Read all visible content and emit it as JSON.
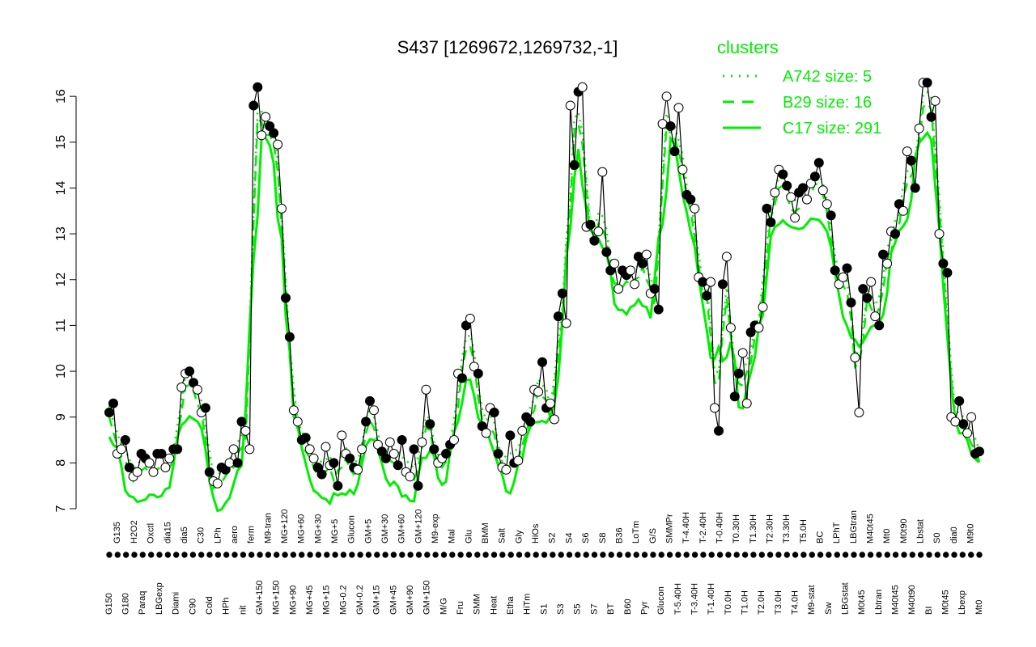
{
  "chart_data": {
    "type": "line",
    "title": "S437 [1269672,1269732,-1]",
    "xlabel": "",
    "ylabel": "",
    "ylim": [
      7,
      16.5
    ],
    "yticks": [
      7,
      8,
      9,
      10,
      11,
      12,
      13,
      14,
      15,
      16
    ],
    "grid": false,
    "legend": {
      "placement": "top-right",
      "title": "clusters",
      "entries": [
        {
          "label": "A742 size: 5",
          "style": "dotted",
          "color": "#00ee00"
        },
        {
          "label": "B29 size: 16",
          "style": "dashed",
          "color": "#00ee00"
        },
        {
          "label": "C17 size: 291",
          "style": "solid",
          "color": "#00ee00"
        }
      ]
    },
    "x_labels": [
      "G150",
      "G135",
      "G180",
      "H2O2",
      "Paraq",
      "Oxctl",
      "LBGexp",
      "dia15",
      "Diami",
      "dia5",
      "C90",
      "C30",
      "Cold",
      "LPh",
      "HPh",
      "aero",
      "nit",
      "ferm",
      "GM+150",
      "M9-tran",
      "MG+150",
      "MG+120",
      "MG+90",
      "MG+60",
      "MG+45",
      "MG+30",
      "MG+15",
      "MG+5",
      "MG-0.2",
      "Glucon",
      "GM-0.2",
      "GM+5",
      "GM+15",
      "GM+30",
      "GM+45",
      "GM+60",
      "GM+90",
      "GM+120",
      "GM+150",
      "M9-exp",
      "M/G",
      "Mal",
      "Fru",
      "Glu",
      "SMM",
      "BMM",
      "Heat",
      "Salt",
      "Etha",
      "Gly",
      "HiTm",
      "HiOs",
      "S1",
      "S2",
      "S3",
      "S4",
      "S5",
      "S6",
      "S7",
      "S8",
      "BT",
      "B36",
      "B60",
      "LoTm",
      "Pyr",
      "G/S",
      "Glucon",
      "SMMPr",
      "T-5.40H",
      "T-4.40H",
      "T-3.40H",
      "T-2.40H",
      "T-1.40H",
      "T-0.40H",
      "T0.0H",
      "T0.30H",
      "T1.0H",
      "T1.30H",
      "T2.0H",
      "T2.30H",
      "T3.0H",
      "T3.30H",
      "T4.0H",
      "T5.0H",
      "M9-stat",
      "BC",
      "Sw",
      "LPhT",
      "LBGstat",
      "LBGtran",
      "M0t45",
      "M40t45",
      "Lbtran",
      "Mt0",
      "M40t45",
      "M0t90",
      "M40t90",
      "Lbstat",
      "BI",
      "S0",
      "M0t45",
      "dia0",
      "Lbexp",
      "M9t0",
      "Mt0"
    ],
    "x_labels_shown_rotated": [
      "G150",
      "G180",
      "Paraq",
      "LBGexp",
      "Diami",
      "C90",
      "Cold",
      "HPh",
      "nit",
      "GM+150",
      "MG+150",
      "MG+90",
      "MG+60",
      "MG+45",
      "MG+30",
      "MG+15",
      "MG+5",
      "MG-0.2",
      "GM-0.2",
      "GM+5",
      "GM+15",
      "GM+30",
      "GM+45",
      "GM+60",
      "GM+90",
      "M9-exp",
      "M/G",
      "Fru",
      "SMM",
      "Heat",
      "Salt",
      "Etha",
      "HiTm",
      "S1",
      "S3",
      "S3",
      "S6",
      "S8",
      "BT",
      "B60",
      "Pyr",
      "Glucon",
      "T-5.40H",
      "T-4.40H",
      "T-3.40H",
      "T0.30H",
      "T1.30H",
      "T2.30H",
      "T3.30H",
      "T5.0H",
      "BC",
      "LPhT",
      "LBGtran",
      "M40t45",
      "Mt0",
      "M40t90",
      "Lbstat",
      "S0",
      "dia0",
      "Mt0"
    ],
    "x_labels_shown_upright": [
      "G135",
      "H2O2",
      "Oxctl",
      "dia15",
      "dia5",
      "C30",
      "LPh",
      "aero",
      "ferm",
      "M9-tran",
      "MG+120",
      "Glucon",
      "Mal",
      "Glu",
      "BMM",
      "Etha",
      "Gly",
      "HiOs",
      "S2",
      "S4",
      "S5",
      "S7",
      "S6",
      "B36",
      "LoTm",
      "G/S",
      "SMMPr",
      "T0.0H",
      "T1.0H",
      "T2.0H",
      "T3.0H",
      "T4.0H",
      "M9-stat",
      "Sw",
      "LBGstat",
      "M0t45",
      "Lbtran",
      "M0t90",
      "BI",
      "M0t45",
      "Lbexp",
      "M9t0"
    ],
    "series": [
      {
        "name": "S437",
        "values": [
          9.1,
          9.3,
          8.2,
          8.3,
          8.5,
          7.9,
          7.7,
          7.8,
          8.2,
          8.1,
          8.0,
          7.8,
          8.2,
          8.2,
          7.9,
          8.1,
          8.3,
          8.3,
          9.65,
          9.95,
          10.0,
          9.75,
          9.6,
          9.1,
          9.2,
          7.8,
          7.6,
          7.55,
          7.9,
          7.85,
          8.0,
          8.3,
          8.0,
          8.9,
          8.7,
          8.3,
          15.8,
          16.2,
          15.15,
          15.55,
          15.35,
          15.2,
          14.95,
          13.55,
          11.6,
          10.75,
          9.15,
          8.9,
          8.5,
          8.55,
          8.3,
          8.1,
          7.9,
          7.75,
          8.35,
          7.95,
          8.0,
          7.5,
          8.6,
          8.2,
          8.1,
          7.9,
          7.85,
          8.3,
          8.9,
          9.35,
          9.15,
          8.4,
          8.25,
          8.1,
          8.45,
          8.2,
          7.95,
          8.5,
          7.8,
          7.7,
          8.3,
          7.5,
          8.45,
          9.6,
          8.85,
          8.3,
          8.0,
          8.1,
          8.2,
          8.4,
          8.5,
          9.95,
          9.85,
          11.0,
          11.15,
          10.1,
          9.95,
          8.8,
          8.65,
          9.2,
          9.1,
          8.2,
          7.9,
          7.85,
          8.6,
          8.0,
          8.05,
          8.7,
          9.0,
          8.9,
          9.6,
          9.55,
          10.2,
          9.2,
          9.3,
          8.95,
          11.2,
          11.7,
          11.05,
          15.8,
          14.5,
          16.1,
          16.2,
          13.15,
          13.2,
          12.85,
          13.05,
          14.35,
          12.6,
          12.2,
          12.35,
          11.8,
          12.2,
          12.1,
          12.2,
          11.9,
          12.5,
          12.35,
          12.55,
          11.7,
          11.8,
          11.35,
          15.4,
          16.0,
          15.35,
          14.8,
          15.75,
          14.4,
          13.85,
          13.75,
          13.55,
          12.05,
          11.95,
          11.65,
          11.95,
          9.2,
          8.7,
          11.9,
          12.5,
          10.95,
          9.45,
          9.95,
          10.4,
          9.3,
          10.85,
          11.0,
          10.95,
          11.4,
          13.55,
          13.25,
          13.9,
          14.4,
          14.3,
          14.05,
          13.8,
          13.35,
          13.9,
          14.0,
          13.75,
          14.1,
          14.25,
          14.55,
          13.95,
          13.65,
          13.4,
          12.2,
          11.9,
          12.05,
          12.25,
          11.5,
          10.3,
          9.1,
          11.8,
          11.6,
          11.95,
          11.2,
          11.0,
          12.55,
          12.35,
          13.05,
          13.0,
          13.65,
          13.5,
          14.8,
          14.6,
          14.0,
          15.3,
          16.3,
          16.3,
          15.55,
          15.9,
          13.0,
          12.35,
          12.15,
          9.0,
          8.9,
          9.35,
          8.85,
          8.65,
          9.0,
          8.2,
          8.25
        ]
      }
    ]
  }
}
